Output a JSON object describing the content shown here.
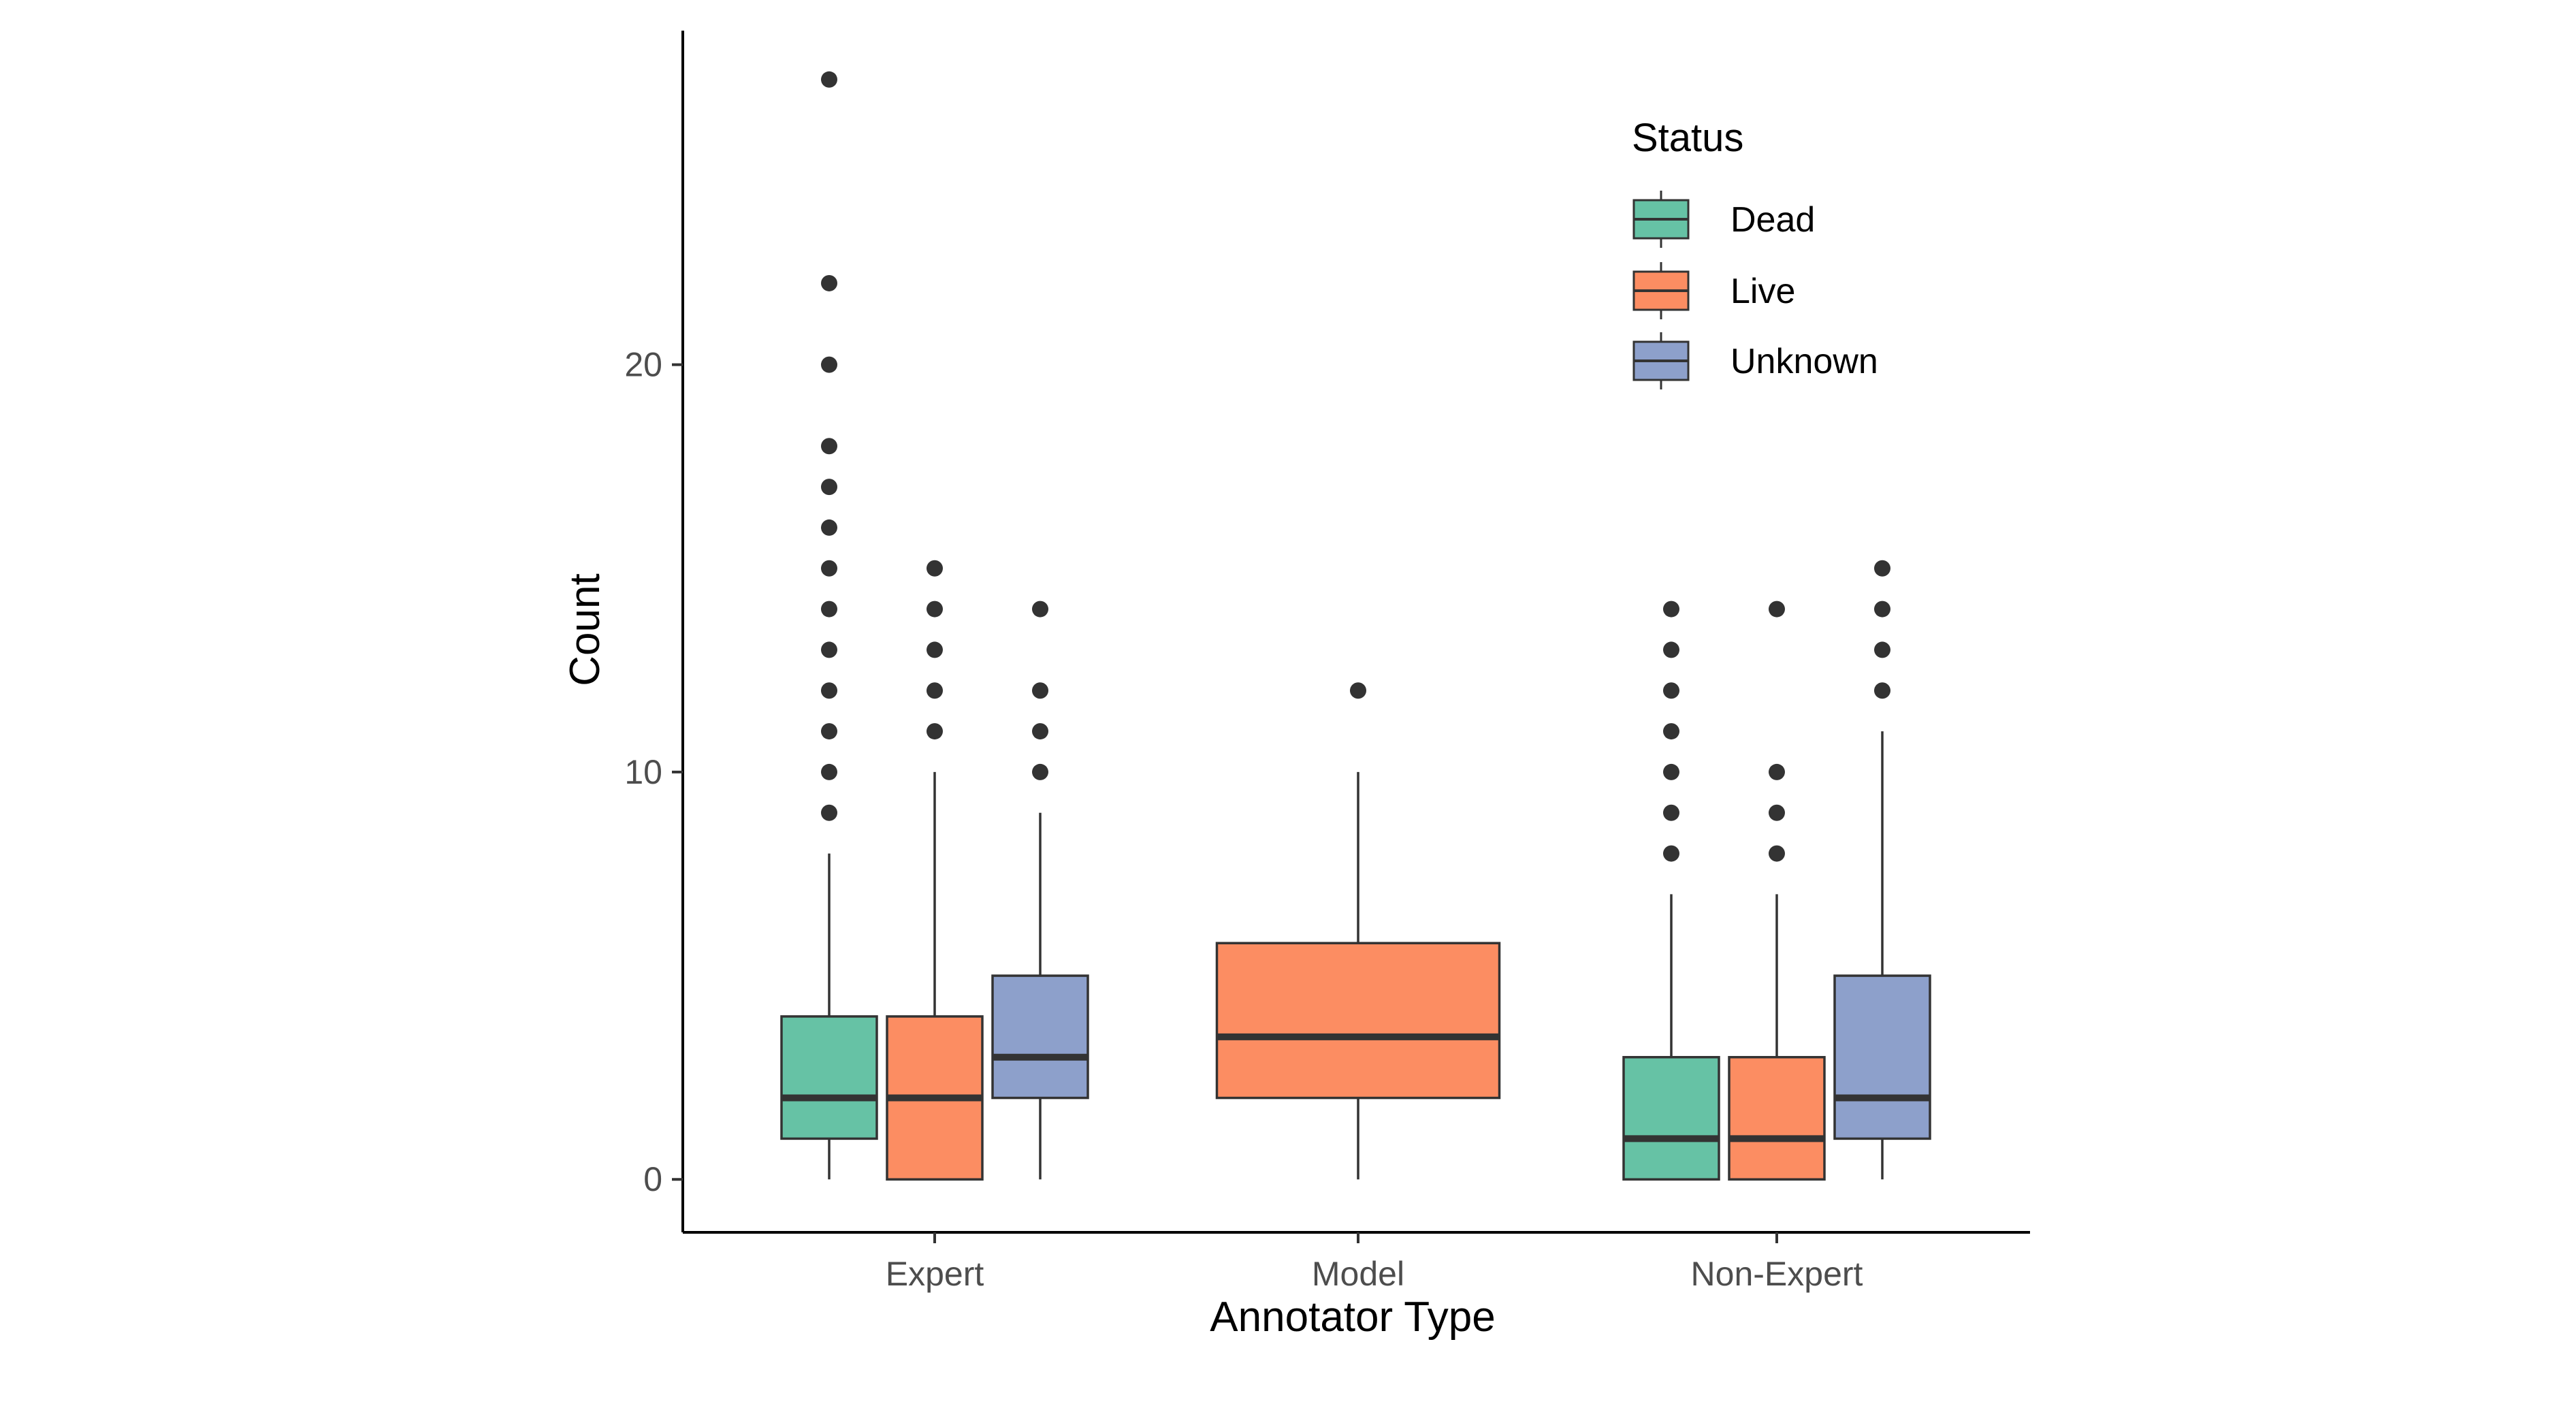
{
  "chart_data": {
    "type": "boxplot",
    "xlabel": "Annotator Type",
    "ylabel": "Count",
    "ylim": [
      -1.3,
      28.2
    ],
    "yticks": [
      0,
      10,
      20
    ],
    "grid": false,
    "legend": {
      "title": "Status",
      "placement": "top-right",
      "entries": [
        "Dead",
        "Live",
        "Unknown"
      ]
    },
    "colors": {
      "Dead": "#66c2a5",
      "Live": "#fc8d62",
      "Unknown": "#8da0cb",
      "outline": "#333333",
      "median": "#333333",
      "axis": "#000000"
    },
    "categories": [
      "Expert",
      "Model",
      "Non-Expert"
    ],
    "groups": [
      {
        "category": "Expert",
        "boxes": [
          {
            "status": "Dead",
            "q1": 1,
            "median": 2,
            "q3": 4,
            "whisker_low": 0,
            "whisker_high": 8,
            "outliers": [
              9,
              10,
              11,
              12,
              13,
              14,
              15,
              16,
              17,
              18,
              20,
              22,
              27
            ]
          },
          {
            "status": "Live",
            "q1": 0,
            "median": 2,
            "q3": 4,
            "whisker_low": 0,
            "whisker_high": 10,
            "outliers": [
              11,
              12,
              13,
              14,
              15
            ]
          },
          {
            "status": "Unknown",
            "q1": 2,
            "median": 3,
            "q3": 5,
            "whisker_low": 0,
            "whisker_high": 9,
            "outliers": [
              10,
              11,
              12,
              14
            ]
          }
        ]
      },
      {
        "category": "Model",
        "boxes": [
          {
            "status": "Live",
            "q1": 2,
            "median": 3.5,
            "q3": 5.8,
            "whisker_low": 0,
            "whisker_high": 10,
            "outliers": [
              12
            ]
          }
        ]
      },
      {
        "category": "Non-Expert",
        "boxes": [
          {
            "status": "Dead",
            "q1": 0,
            "median": 1,
            "q3": 3,
            "whisker_low": 0,
            "whisker_high": 7,
            "outliers": [
              8,
              9,
              10,
              11,
              12,
              13,
              14
            ]
          },
          {
            "status": "Live",
            "q1": 0,
            "median": 1,
            "q3": 3,
            "whisker_low": 0,
            "whisker_high": 7,
            "outliers": [
              8,
              9,
              10,
              14
            ]
          },
          {
            "status": "Unknown",
            "q1": 1,
            "median": 2,
            "q3": 5,
            "whisker_low": 0,
            "whisker_high": 11,
            "outliers": [
              12,
              13,
              14,
              15
            ]
          }
        ]
      }
    ]
  }
}
